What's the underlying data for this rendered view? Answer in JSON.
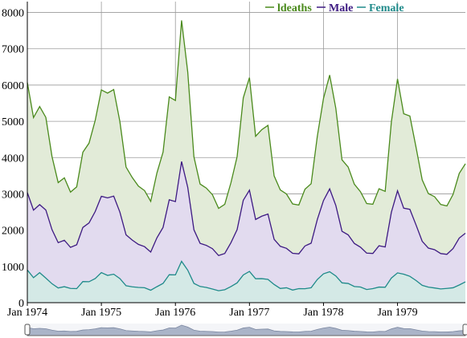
{
  "chart_data": {
    "type": "area",
    "x": [
      "Jan 1974",
      "Feb 1974",
      "Mar 1974",
      "Apr 1974",
      "May 1974",
      "Jun 1974",
      "Jul 1974",
      "Aug 1974",
      "Sep 1974",
      "Oct 1974",
      "Nov 1974",
      "Dec 1974",
      "Jan 1975",
      "Feb 1975",
      "Mar 1975",
      "Apr 1975",
      "May 1975",
      "Jun 1975",
      "Jul 1975",
      "Aug 1975",
      "Sep 1975",
      "Oct 1975",
      "Nov 1975",
      "Dec 1975",
      "Jan 1976",
      "Feb 1976",
      "Mar 1976",
      "Apr 1976",
      "May 1976",
      "Jun 1976",
      "Jul 1976",
      "Aug 1976",
      "Sep 1976",
      "Oct 1976",
      "Nov 1976",
      "Dec 1976",
      "Jan 1977",
      "Feb 1977",
      "Mar 1977",
      "Apr 1977",
      "May 1977",
      "Jun 1977",
      "Jul 1977",
      "Aug 1977",
      "Sep 1977",
      "Oct 1977",
      "Nov 1977",
      "Dec 1977",
      "Jan 1978",
      "Feb 1978",
      "Mar 1978",
      "Apr 1978",
      "May 1978",
      "Jun 1978",
      "Jul 1978",
      "Aug 1978",
      "Sep 1978",
      "Oct 1978",
      "Nov 1978",
      "Dec 1978",
      "Jan 1979",
      "Feb 1979",
      "Mar 1979",
      "Apr 1979",
      "May 1979",
      "Jun 1979",
      "Jul 1979",
      "Aug 1979",
      "Sep 1979",
      "Oct 1979",
      "Nov 1979",
      "Dec 1979"
    ],
    "series": [
      {
        "name": "ldeaths",
        "color": "#4a8a1c",
        "fill": "#e2ebd8",
        "values": [
          3035,
          2552,
          2704,
          2554,
          2014,
          1655,
          1721,
          1524,
          1596,
          2074,
          2199,
          2512,
          2933,
          2889,
          2938,
          2497,
          1870,
          1726,
          1607,
          1545,
          1396,
          1787,
          2076,
          2837,
          2787,
          3891,
          3179,
          2011,
          1636,
          1580,
          1489,
          1300,
          1356,
          1653,
          2013,
          2823,
          3102,
          2294,
          2385,
          2444,
          1748,
          1554,
          1498,
          1361,
          1346,
          1564,
          1640,
          2293,
          2815,
          3137,
          2679,
          1969,
          1870,
          1633,
          1529,
          1366,
          1357,
          1570,
          1535,
          2491,
          3084,
          2605,
          2573,
          2143,
          1693,
          1504,
          1461,
          1354,
          1333,
          1492,
          1781,
          1915
        ]
      },
      {
        "name": "Male",
        "color": "#3d1a82",
        "fill": "#e2dbef",
        "values": [
          2134,
          1863,
          1877,
          1877,
          1492,
          1249,
          1280,
          1131,
          1209,
          1492,
          1621,
          1846,
          2103,
          2137,
          2153,
          1833,
          1403,
          1288,
          1186,
          1133,
          1053,
          1347,
          1545,
          2066,
          2020,
          2750,
          2283,
          1479,
          1189,
          1160,
          1113,
          970,
          999,
          1208,
          1467,
          2059,
          2240,
          1634,
          1722,
          1801,
          1246,
          1162,
          1087,
          1013,
          959,
          1179,
          1229,
          1655,
          2019,
          2284,
          1942,
          1423,
          1340,
          1187,
          1098,
          1004,
          970,
          1140,
          1110,
          1812,
          2263,
          1820,
          1846,
          1531,
          1215,
          1075,
          1056,
          975,
          940,
          1081,
          1294,
          1341
        ]
      },
      {
        "name": "Female",
        "color": "#1f8a8a",
        "fill": "#d4e9e6",
        "values": [
          901,
          689,
          827,
          677,
          522,
          406,
          441,
          393,
          387,
          582,
          578,
          666,
          830,
          752,
          785,
          664,
          467,
          438,
          421,
          412,
          343,
          440,
          531,
          771,
          767,
          1141,
          896,
          532,
          447,
          420,
          376,
          330,
          357,
          445,
          546,
          764,
          862,
          660,
          663,
          643,
          502,
          392,
          411,
          348,
          387,
          385,
          411,
          638,
          796,
          853,
          737,
          546,
          530,
          446,
          431,
          362,
          387,
          430,
          425,
          679,
          821,
          785,
          727,
          612,
          478,
          429,
          405,
          379,
          393,
          411,
          487,
          574
        ]
      }
    ],
    "stacked": true,
    "ylim": [
      0,
      8300
    ],
    "yticks": [
      0,
      1000,
      2000,
      3000,
      4000,
      5000,
      6000,
      7000,
      8000
    ],
    "xticks": [
      "Jan 1974",
      "Jan 1975",
      "Jan 1976",
      "Jan 1977",
      "Jan 1978",
      "Jan 1979"
    ],
    "legend": {
      "position": "top-right",
      "entries": [
        "ldeaths",
        "Male",
        "Female"
      ]
    },
    "grid": true,
    "range_selector": true
  }
}
